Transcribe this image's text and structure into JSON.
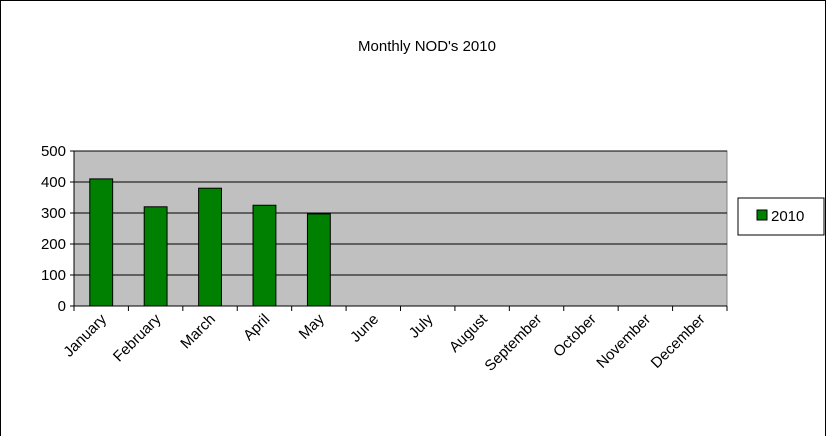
{
  "chart_data": {
    "type": "bar",
    "title": "Monthly NOD's 2010",
    "categories": [
      "January",
      "February",
      "March",
      "April",
      "May",
      "June",
      "July",
      "August",
      "September",
      "October",
      "November",
      "December"
    ],
    "series": [
      {
        "name": "2010",
        "values": [
          410,
          320,
          380,
          325,
          297,
          null,
          null,
          null,
          null,
          null,
          null,
          null
        ],
        "color": "#008000"
      }
    ],
    "ylim": [
      0,
      500
    ],
    "yticks": [
      0,
      100,
      200,
      300,
      400,
      500
    ],
    "grid": true,
    "plot_background": "#c0c0c0",
    "legend_position": "right"
  }
}
